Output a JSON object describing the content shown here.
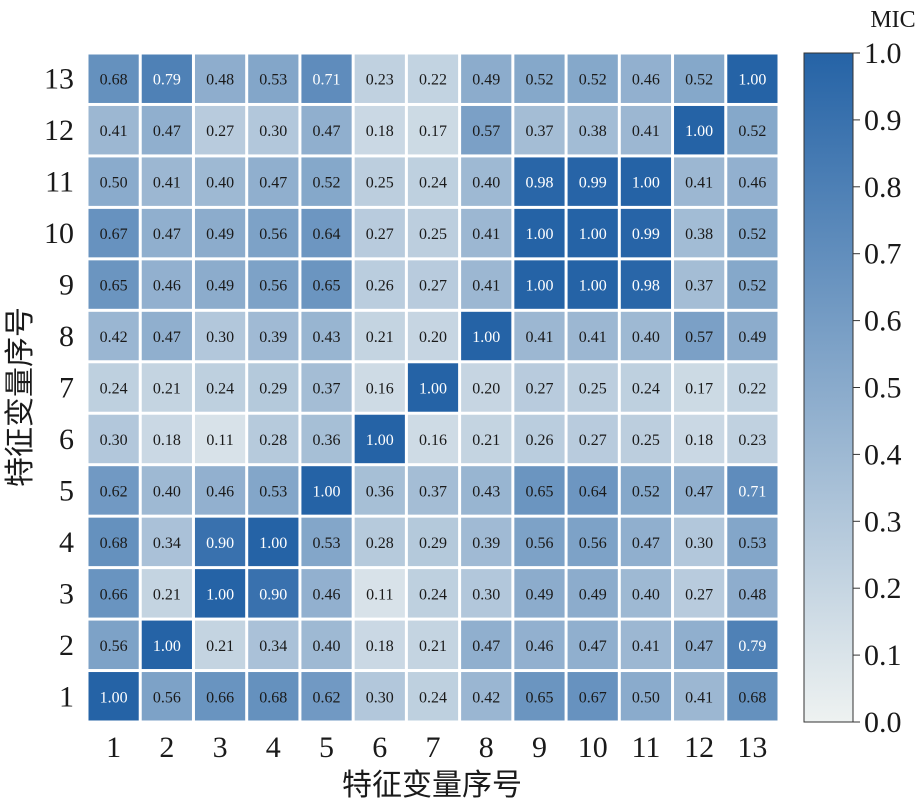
{
  "chart_data": {
    "type": "heatmap",
    "xlabel": "特征变量序号",
    "ylabel": "特征变量序号",
    "x_categories": [
      "1",
      "2",
      "3",
      "4",
      "5",
      "6",
      "7",
      "8",
      "9",
      "10",
      "11",
      "12",
      "13"
    ],
    "y_categories": [
      "1",
      "2",
      "3",
      "4",
      "5",
      "6",
      "7",
      "8",
      "9",
      "10",
      "11",
      "12",
      "13"
    ],
    "value_labels": [
      [
        "1.00",
        "0.56",
        "0.66",
        "0.68",
        "0.62",
        "0.30",
        "0.24",
        "0.42",
        "0.65",
        "0.67",
        "0.50",
        "0.41",
        "0.68"
      ],
      [
        "0.56",
        "1.00",
        "0.21",
        "0.34",
        "0.40",
        "0.18",
        "0.21",
        "0.47",
        "0.46",
        "0.47",
        "0.41",
        "0.47",
        "0.79"
      ],
      [
        "0.66",
        "0.21",
        "1.00",
        "0.90",
        "0.46",
        "0.11",
        "0.24",
        "0.30",
        "0.49",
        "0.49",
        "0.40",
        "0.27",
        "0.48"
      ],
      [
        "0.68",
        "0.34",
        "0.90",
        "1.00",
        "0.53",
        "0.28",
        "0.29",
        "0.39",
        "0.56",
        "0.56",
        "0.47",
        "0.30",
        "0.53"
      ],
      [
        "0.62",
        "0.40",
        "0.46",
        "0.53",
        "1.00",
        "0.36",
        "0.37",
        "0.43",
        "0.65",
        "0.64",
        "0.52",
        "0.47",
        "0.71"
      ],
      [
        "0.30",
        "0.18",
        "0.11",
        "0.28",
        "0.36",
        "1.00",
        "0.16",
        "0.21",
        "0.26",
        "0.27",
        "0.25",
        "0.18",
        "0.23"
      ],
      [
        "0.24",
        "0.21",
        "0.24",
        "0.29",
        "0.37",
        "0.16",
        "1.00",
        "0.20",
        "0.27",
        "0.25",
        "0.24",
        "0.17",
        "0.22"
      ],
      [
        "0.42",
        "0.47",
        "0.30",
        "0.39",
        "0.43",
        "0.21",
        "0.20",
        "1.00",
        "0.41",
        "0.41",
        "0.40",
        "0.57",
        "0.49"
      ],
      [
        "0.65",
        "0.46",
        "0.49",
        "0.56",
        "0.65",
        "0.26",
        "0.27",
        "0.41",
        "1.00",
        "1.00",
        "0.98",
        "0.37",
        "0.52"
      ],
      [
        "0.67",
        "0.47",
        "0.49",
        "0.56",
        "0.64",
        "0.27",
        "0.25",
        "0.41",
        "1.00",
        "1.00",
        "0.99",
        "0.38",
        "0.52"
      ],
      [
        "0.50",
        "0.41",
        "0.40",
        "0.47",
        "0.52",
        "0.25",
        "0.24",
        "0.40",
        "0.98",
        "0.99",
        "1.00",
        "0.41",
        "0.46"
      ],
      [
        "0.41",
        "0.47",
        "0.27",
        "0.30",
        "0.47",
        "0.18",
        "0.17",
        "0.57",
        "0.37",
        "0.38",
        "0.41",
        "1.00",
        "0.52"
      ],
      [
        "0.68",
        "0.79",
        "0.48",
        "0.53",
        "0.71",
        "0.23",
        "0.22",
        "0.49",
        "0.52",
        "0.52",
        "0.46",
        "0.52",
        "1.00"
      ]
    ],
    "colorbar": {
      "label": "MIC",
      "range": [
        0.0,
        1.0
      ],
      "ticks": [
        "0.0",
        "0.1",
        "0.2",
        "0.3",
        "0.4",
        "0.5",
        "0.6",
        "0.7",
        "0.8",
        "0.9",
        "1.0"
      ],
      "color_low": "#eef2f1",
      "color_high": "#2563a6"
    },
    "grid": false
  }
}
